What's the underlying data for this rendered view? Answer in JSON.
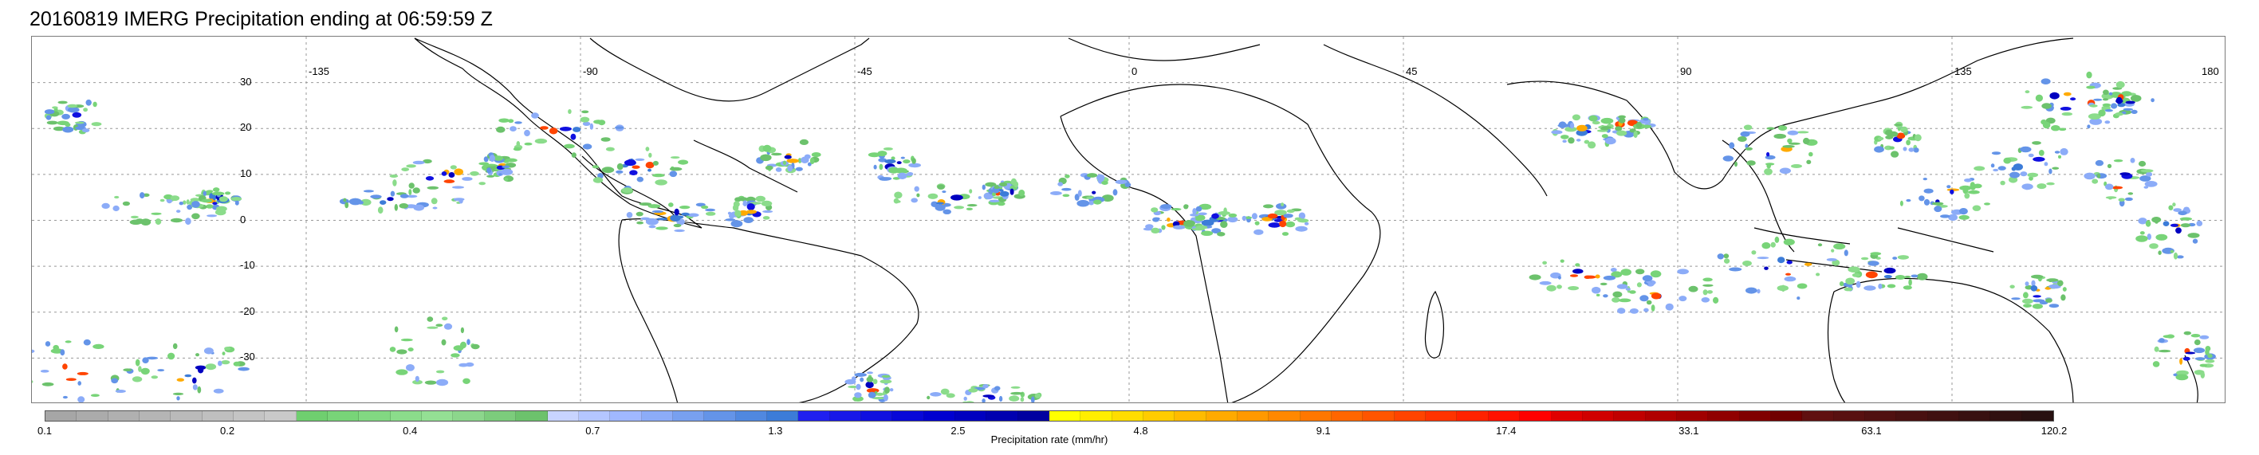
{
  "title": "20160819 IMERG Precipitation ending at 06:59:59 Z",
  "map": {
    "longitude_labels": [
      "-135",
      "-90",
      "-45",
      "0",
      "45",
      "90",
      "135",
      "180"
    ],
    "latitude_labels": [
      "30",
      "20",
      "10",
      "0",
      "-10",
      "-20",
      "-30"
    ],
    "gridlines": "dotted",
    "lon_range": [
      -180,
      180
    ],
    "lat_range": [
      -40,
      40
    ]
  },
  "colorbar": {
    "label": "Precipitation rate (mm/hr)",
    "tick_labels": [
      "0.1",
      "0.2",
      "0.4",
      "0.7",
      "1.3",
      "2.5",
      "4.8",
      "9.1",
      "17.4",
      "33.1",
      "63.1",
      "120.2"
    ],
    "colors": [
      "#a6a6a6",
      "#ababab",
      "#b0b0b0",
      "#b5b5b5",
      "#bababa",
      "#bfbfbf",
      "#c4c4c4",
      "#c9c9c9",
      "#6fcf6f",
      "#78d478",
      "#82d882",
      "#8bdc8b",
      "#94e094",
      "#8cd68c",
      "#7ccc7c",
      "#6cc26c",
      "#c8d4ff",
      "#b4c6ff",
      "#a0b8ff",
      "#8cacf8",
      "#78a0f0",
      "#6494e8",
      "#5088e0",
      "#3c7cd8",
      "#2020f0",
      "#1818e8",
      "#1010e0",
      "#0808d8",
      "#0000d0",
      "#0000c0",
      "#0000b0",
      "#0000a0",
      "#ffff00",
      "#ffee00",
      "#ffdd00",
      "#ffcc00",
      "#ffbb00",
      "#ffaa00",
      "#ff9900",
      "#ff8800",
      "#ff7700",
      "#ff6600",
      "#ff5500",
      "#ff4400",
      "#ff3300",
      "#ff2200",
      "#ff1100",
      "#ff0000",
      "#e00000",
      "#d00000",
      "#c00000",
      "#b00000",
      "#a00000",
      "#900000",
      "#800000",
      "#700000",
      "#601010",
      "#581010",
      "#501010",
      "#481010",
      "#401010",
      "#381010",
      "#301010",
      "#281010"
    ]
  }
}
